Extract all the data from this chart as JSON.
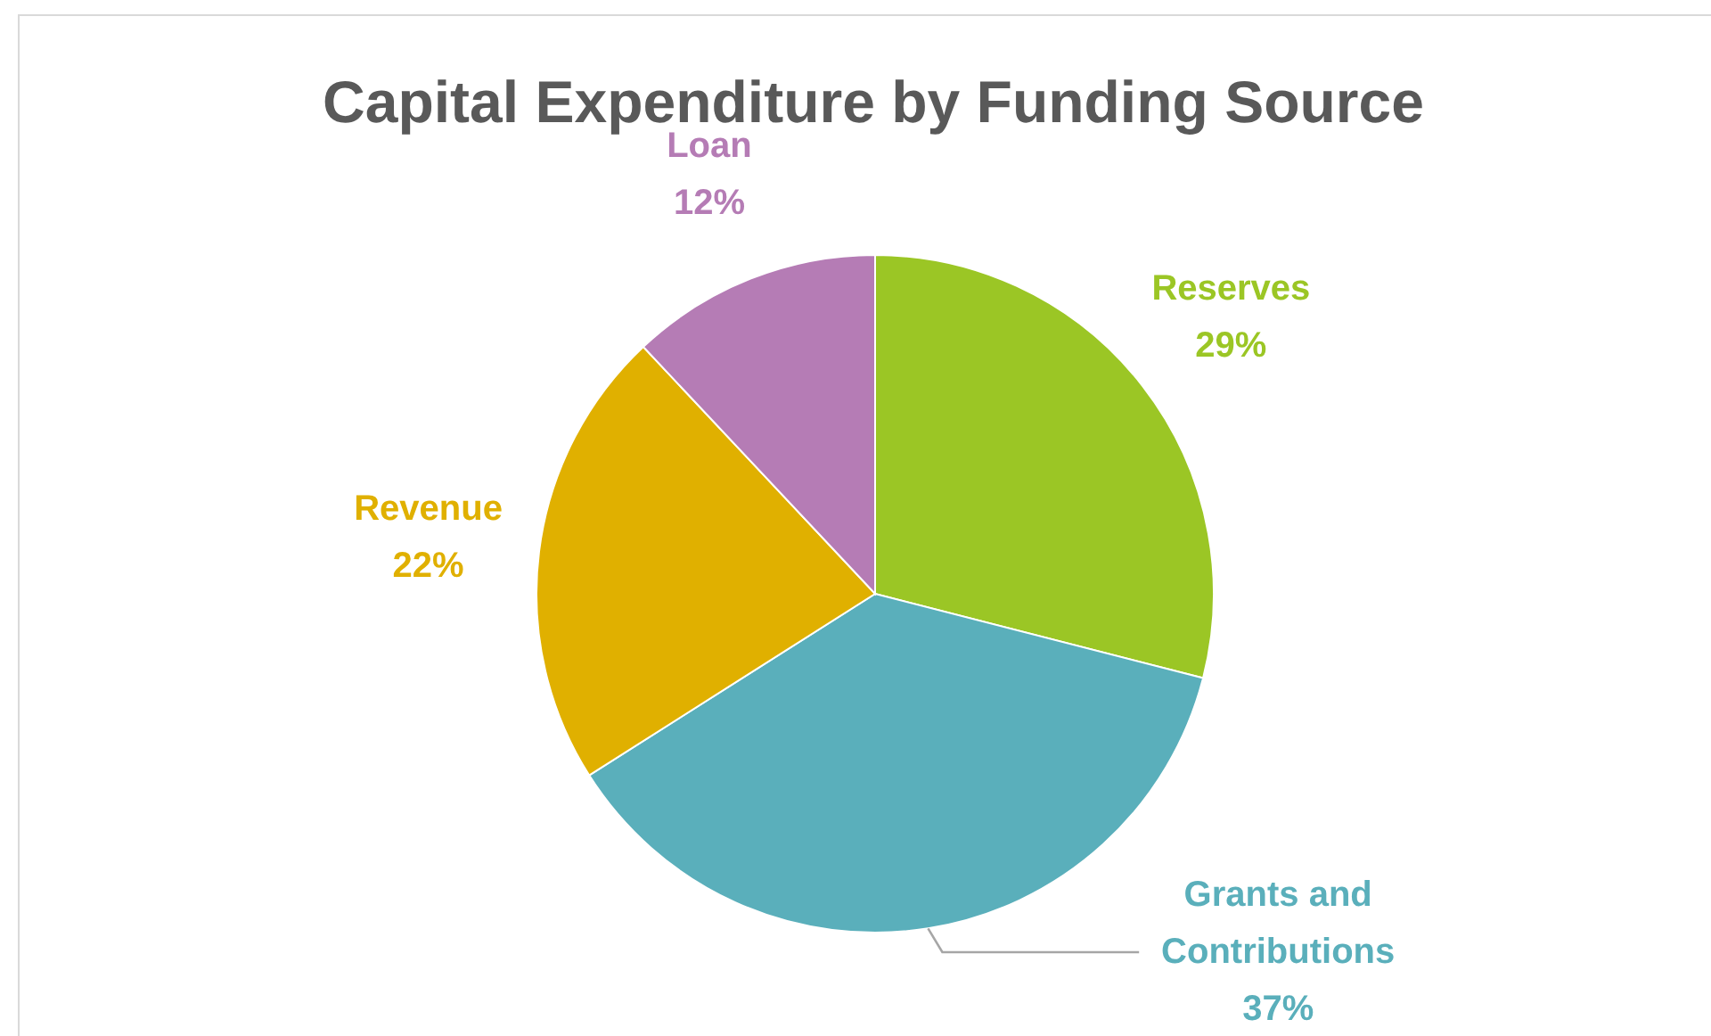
{
  "chart_data": {
    "type": "pie",
    "title": "Capital Expenditure by Funding Source",
    "categories": [
      "Reserves",
      "Grants and Contributions",
      "Revenue",
      "Loan"
    ],
    "values": [
      29,
      37,
      22,
      12
    ],
    "colors": [
      "#9bc625",
      "#5aafbb",
      "#e0b000",
      "#b57cb5"
    ],
    "value_labels": [
      "29%",
      "37%",
      "22%",
      "12%"
    ]
  }
}
